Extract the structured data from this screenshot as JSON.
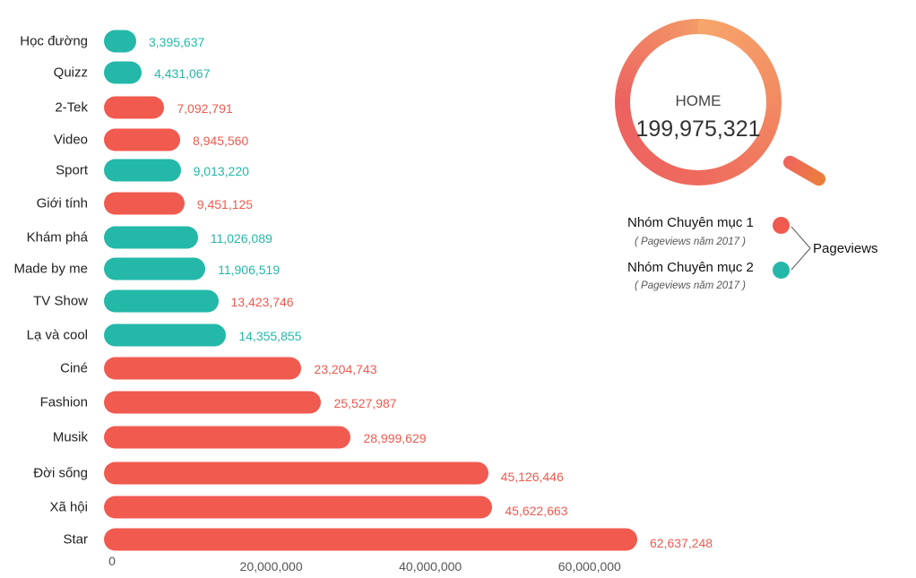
{
  "chart_data": {
    "type": "bar",
    "orientation": "horizontal",
    "categories": [
      "Học đường",
      "Quizz",
      "2-Tek",
      "Video",
      "Sport",
      "Giới tính",
      "Khám phá",
      "Made by me",
      "TV Show",
      "Lạ và cool",
      "Ciné",
      "Fashion",
      "Musik",
      "Đời sống",
      "Xã hội",
      "Star"
    ],
    "values": [
      3395637,
      4431067,
      7092791,
      8945560,
      9013220,
      9451125,
      11026089,
      11906519,
      13423746,
      14355855,
      23204743,
      25527987,
      28999629,
      45126446,
      45622663,
      62637248
    ],
    "value_labels": [
      "3,395,637",
      "4,431,067",
      "7,092,791",
      "8,945,560",
      "9,013,220",
      "9,451,125",
      "11,026,089",
      "11,906,519",
      "13,423,746",
      "14,355,855",
      "23,204,743",
      "25,527,987",
      "28,999,629",
      "45,126,446",
      "45,622,663",
      "62,637,248"
    ],
    "groups": [
      2,
      2,
      1,
      1,
      2,
      1,
      2,
      2,
      2,
      2,
      1,
      1,
      1,
      1,
      1,
      1
    ],
    "label_groups": [
      2,
      2,
      1,
      1,
      2,
      1,
      2,
      2,
      1,
      2,
      1,
      1,
      1,
      1,
      1,
      1
    ],
    "xticks": [
      0,
      20000000,
      40000000,
      60000000
    ],
    "xtick_labels": [
      "0",
      "20,000,000",
      "40,000,000",
      "60,000,000"
    ],
    "xlim": [
      0,
      65000000
    ],
    "grid": false,
    "legend_placement": "right",
    "legend": {
      "title": "Pageviews",
      "items": [
        {
          "name": "Nhóm Chuyên mục 1",
          "sub": "( Pageviews năm 2017 )",
          "color": "#f05a4f"
        },
        {
          "name": "Nhóm Chuyên mục 2",
          "sub": "( Pageviews năm 2017 )",
          "color": "#24b8a8"
        }
      ]
    },
    "total": {
      "label": "HOME",
      "value": "199,975,321"
    }
  },
  "colors": {
    "group1": "#f05a4f",
    "group2": "#24b8a8"
  }
}
